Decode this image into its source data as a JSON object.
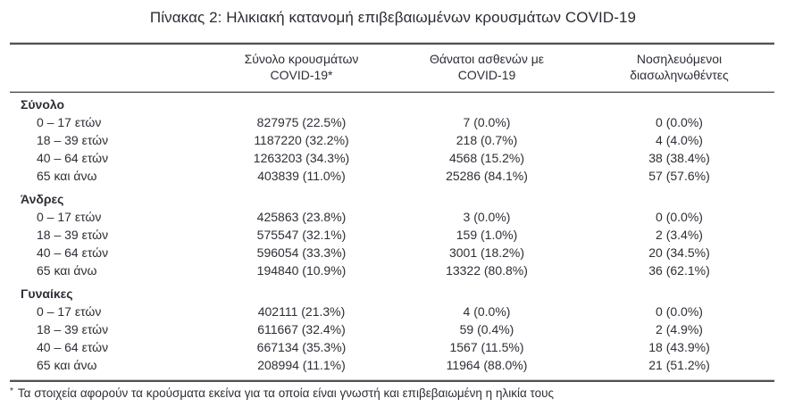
{
  "title": "Πίνακας 2: Ηλικιακή κατανομή επιβεβαιωμένων κρουσμάτων COVID-19",
  "colors": {
    "text": "#2e2e36",
    "rule": "#515155",
    "background": "#ffffff"
  },
  "table": {
    "header": {
      "cases_line1": "Σύνολο κρουσμάτων",
      "cases_line2": "COVID-19*",
      "deaths_line1": "Θάνατοι ασθενών με",
      "deaths_line2": "COVID-19",
      "intubated_line1": "Νοσηλευόμενοι",
      "intubated_line2": "διασωληνωθέντες"
    },
    "sections": [
      {
        "label": "Σύνολο",
        "rows": [
          {
            "age": "0 – 17 ετών",
            "cases": "827975 (22.5%)",
            "deaths": "7 (0.0%)",
            "intubated": "0 (0.0%)"
          },
          {
            "age": "18 – 39 ετών",
            "cases": "1187220 (32.2%)",
            "deaths": "218 (0.7%)",
            "intubated": "4 (4.0%)"
          },
          {
            "age": "40 – 64 ετών",
            "cases": "1263203 (34.3%)",
            "deaths": "4568 (15.2%)",
            "intubated": "38 (38.4%)"
          },
          {
            "age": "65 και άνω",
            "cases": "403839 (11.0%)",
            "deaths": "25286 (84.1%)",
            "intubated": "57 (57.6%)"
          }
        ]
      },
      {
        "label": "Άνδρες",
        "rows": [
          {
            "age": "0 – 17 ετών",
            "cases": "425863 (23.8%)",
            "deaths": "3 (0.0%)",
            "intubated": "0 (0.0%)"
          },
          {
            "age": "18 – 39 ετών",
            "cases": "575547 (32.1%)",
            "deaths": "159 (1.0%)",
            "intubated": "2 (3.4%)"
          },
          {
            "age": "40 – 64 ετών",
            "cases": "596054 (33.3%)",
            "deaths": "3001 (18.2%)",
            "intubated": "20 (34.5%)"
          },
          {
            "age": "65 και άνω",
            "cases": "194840 (10.9%)",
            "deaths": "13322 (80.8%)",
            "intubated": "36 (62.1%)"
          }
        ]
      },
      {
        "label": "Γυναίκες",
        "rows": [
          {
            "age": "0 – 17 ετών",
            "cases": "402111 (21.3%)",
            "deaths": "4 (0.0%)",
            "intubated": "0 (0.0%)"
          },
          {
            "age": "18 – 39 ετών",
            "cases": "611667 (32.4%)",
            "deaths": "59 (0.4%)",
            "intubated": "2 (4.9%)"
          },
          {
            "age": "40 – 64 ετών",
            "cases": "667134 (35.3%)",
            "deaths": "1567 (11.5%)",
            "intubated": "18 (43.9%)"
          },
          {
            "age": "65 και άνω",
            "cases": "208994 (11.1%)",
            "deaths": "11964 (88.0%)",
            "intubated": "21 (51.2%)"
          }
        ]
      }
    ],
    "footnote_marker": "*",
    "footnote": "Τα στοιχεία αφορούν τα κρούσματα εκείνα για τα οποία είναι γνωστή και επιβεβαιωμένη η ηλικία τους"
  }
}
